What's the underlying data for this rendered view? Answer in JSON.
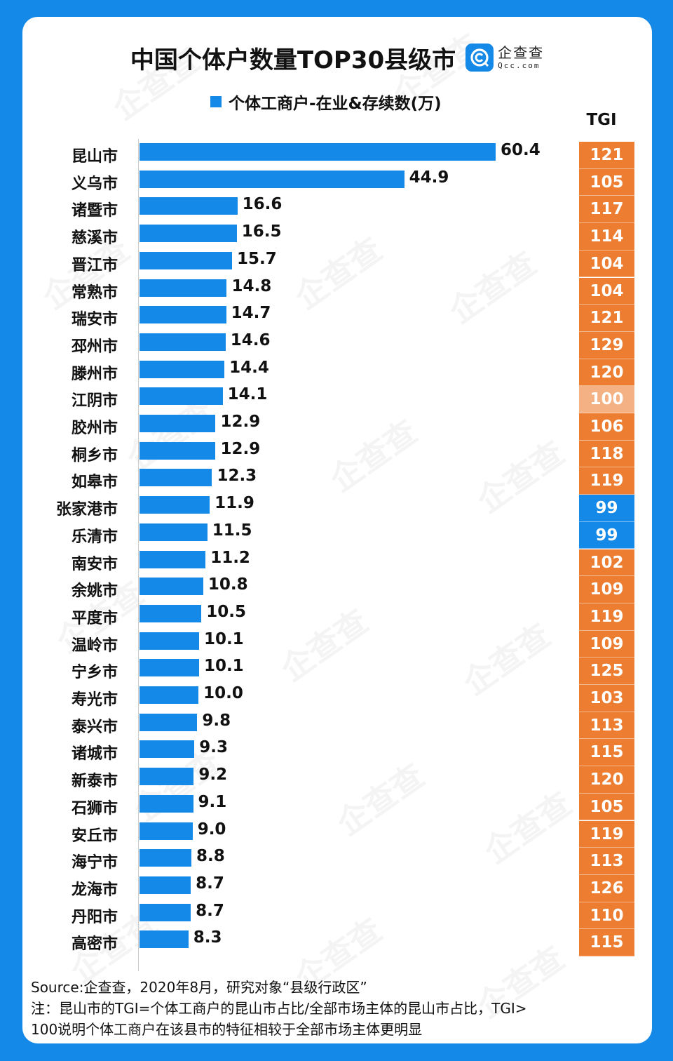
{
  "title": "中国个体户数量TOP30县级市",
  "logo": {
    "cn": "企查查",
    "en": "Qcc.com"
  },
  "legend": {
    "label": "个体工商户-在业&存续数(万)",
    "color": "#1589e8"
  },
  "tgi_header": "TGI",
  "colors": {
    "frame": "#1589e8",
    "bar": "#1589e8",
    "tgi_high": "#ed7d31",
    "tgi_equal": "#f4b183",
    "tgi_low": "#1589e8"
  },
  "footer": {
    "source": "Source:企查查，2020年8月，研究对象“县级行政区”",
    "note_line1": "注：昆山市的TGI=个体工商户的昆山市占比/全部市场主体的昆山市占比，TGI>",
    "note_line2": "100说明个体工商户在该县市的特征相较于全部市场主体更明显"
  },
  "chart_data": {
    "type": "bar",
    "orientation": "horizontal",
    "title": "中国个体户数量TOP30县级市",
    "xlabel": "",
    "ylabel": "",
    "legend": [
      "个体工商户-在业&存续数(万)"
    ],
    "grid": false,
    "categories": [
      "昆山市",
      "义乌市",
      "诸暨市",
      "慈溪市",
      "晋江市",
      "常熟市",
      "瑞安市",
      "邳州市",
      "滕州市",
      "江阴市",
      "胶州市",
      "桐乡市",
      "如皋市",
      "张家港市",
      "乐清市",
      "南安市",
      "余姚市",
      "平度市",
      "温岭市",
      "宁乡市",
      "寿光市",
      "泰兴市",
      "诸城市",
      "新泰市",
      "石狮市",
      "安丘市",
      "海宁市",
      "龙海市",
      "丹阳市",
      "高密市"
    ],
    "series": [
      {
        "name": "个体工商户-在业&存续数(万)",
        "values": [
          60.4,
          44.9,
          16.6,
          16.5,
          15.7,
          14.8,
          14.7,
          14.6,
          14.4,
          14.1,
          12.9,
          12.9,
          12.3,
          11.9,
          11.5,
          11.2,
          10.8,
          10.5,
          10.1,
          10.1,
          10.0,
          9.8,
          9.3,
          9.2,
          9.1,
          9.0,
          8.8,
          8.7,
          8.7,
          8.3
        ]
      },
      {
        "name": "TGI",
        "values": [
          121,
          105,
          117,
          114,
          104,
          104,
          121,
          129,
          120,
          100,
          106,
          118,
          119,
          99,
          99,
          102,
          109,
          119,
          109,
          125,
          103,
          113,
          115,
          120,
          105,
          119,
          113,
          126,
          110,
          115
        ]
      }
    ],
    "value_labels": [
      "60.4",
      "44.9",
      "16.6",
      "16.5",
      "15.7",
      "14.8",
      "14.7",
      "14.6",
      "14.4",
      "14.1",
      "12.9",
      "12.9",
      "12.3",
      "11.9",
      "11.5",
      "11.2",
      "10.8",
      "10.5",
      "10.1",
      "10.1",
      "10.0",
      "9.8",
      "9.3",
      "9.2",
      "9.1",
      "9.0",
      "8.8",
      "8.7",
      "8.7",
      "8.3"
    ],
    "tgi_labels": [
      "121",
      "105",
      "117",
      "114",
      "104",
      "104",
      "121",
      "129",
      "120",
      "100",
      "106",
      "118",
      "119",
      "99",
      "99",
      "102",
      "109",
      "119",
      "109",
      "125",
      "103",
      "113",
      "115",
      "120",
      "105",
      "119",
      "113",
      "126",
      "110",
      "115"
    ],
    "xlim": [
      0,
      60.4
    ]
  }
}
